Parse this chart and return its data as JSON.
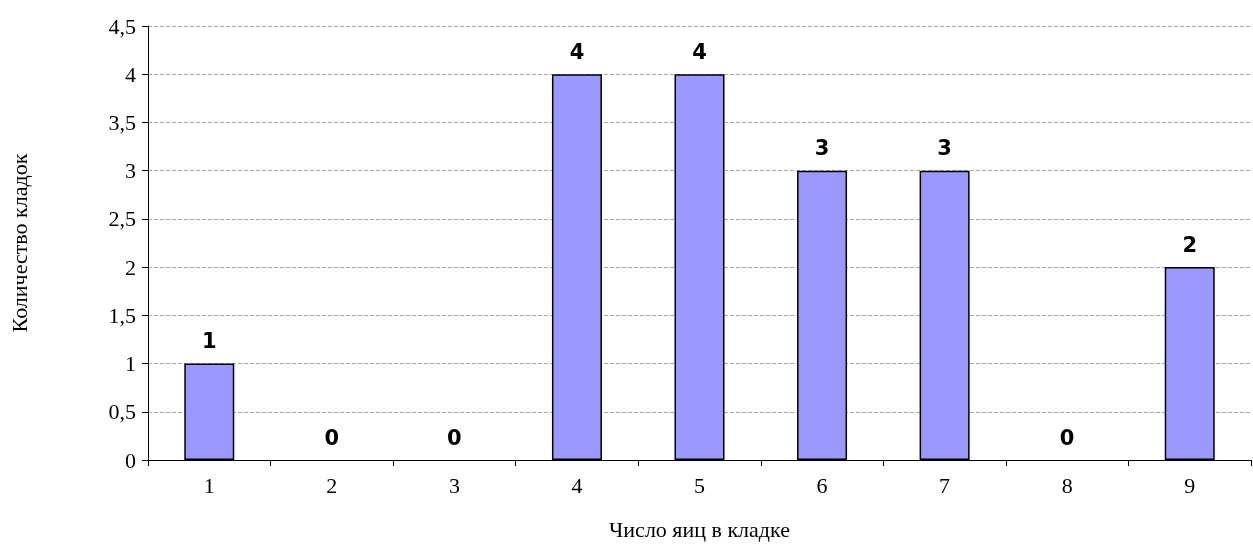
{
  "chart_data": {
    "type": "bar",
    "xlabel": "Число яиц в кладке",
    "ylabel": "Количество кладок",
    "categories": [
      "1",
      "2",
      "3",
      "4",
      "5",
      "6",
      "7",
      "8",
      "9"
    ],
    "values": [
      1,
      0,
      0,
      4,
      4,
      3,
      3,
      0,
      2
    ],
    "color": "#9999ff",
    "ylim": [
      0,
      4.5
    ],
    "yticks": [
      0,
      {
        "value": 0.5,
        "label": "0,5"
      },
      1,
      {
        "value": 1.5,
        "label": "1,5"
      },
      2,
      {
        "value": 2.5,
        "label": "2,5"
      },
      3,
      {
        "value": 3.5,
        "label": "3,5"
      },
      4,
      {
        "value": 4.5,
        "label": "4,5"
      }
    ],
    "grid": "y",
    "data_labels": true
  }
}
